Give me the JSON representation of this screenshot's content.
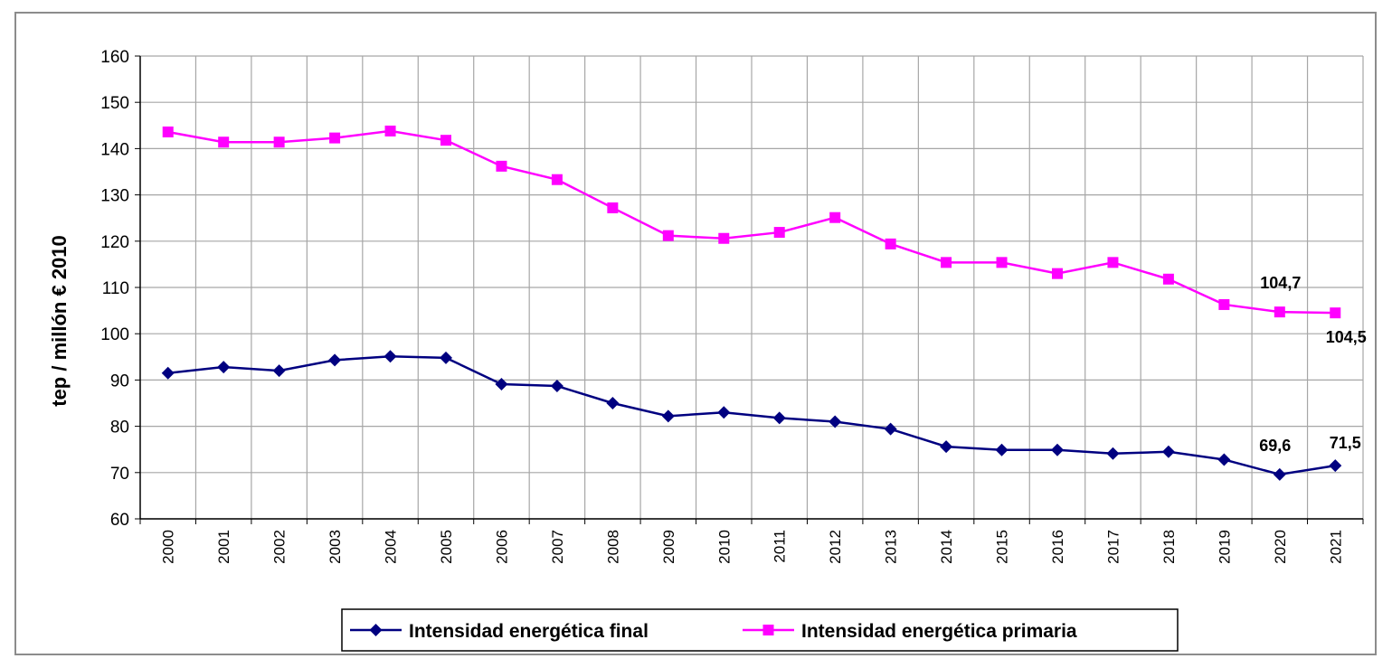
{
  "chart_data": {
    "type": "line",
    "ylabel": "tep / millón € 2010",
    "xlabel": "",
    "ylim": [
      60,
      160
    ],
    "yticks": [
      60,
      70,
      80,
      90,
      100,
      110,
      120,
      130,
      140,
      150,
      160
    ],
    "categories": [
      "2000",
      "2001",
      "2002",
      "2003",
      "2004",
      "2005",
      "2006",
      "2007",
      "2008",
      "2009",
      "2010",
      "2011",
      "2012",
      "2013",
      "2014",
      "2015",
      "2016",
      "2017",
      "2018",
      "2019",
      "2020",
      "2021"
    ],
    "grid": true,
    "legend_position": "bottom",
    "series": [
      {
        "name": "Intensidad energética final",
        "color": "#000080",
        "marker": "diamond",
        "values": [
          91.5,
          92.8,
          92.0,
          94.3,
          95.1,
          94.8,
          89.1,
          88.7,
          85.0,
          82.2,
          83.0,
          81.8,
          81.0,
          79.4,
          75.6,
          74.9,
          74.9,
          74.1,
          74.5,
          72.8,
          69.6,
          71.5
        ],
        "data_labels": [
          {
            "category": "2020",
            "text": "69,6"
          },
          {
            "category": "2021",
            "text": "71,5"
          }
        ]
      },
      {
        "name": "Intensidad energética primaria",
        "color": "#ff00ff",
        "marker": "square",
        "values": [
          143.6,
          141.4,
          141.4,
          142.3,
          143.8,
          141.8,
          136.2,
          133.3,
          127.2,
          121.2,
          120.6,
          121.9,
          125.1,
          119.4,
          115.4,
          115.4,
          113.0,
          115.4,
          111.8,
          106.3,
          104.7,
          104.5
        ],
        "data_labels": [
          {
            "category": "2020",
            "text": "104,7"
          },
          {
            "category": "2021",
            "text": "104,5"
          }
        ]
      }
    ]
  }
}
